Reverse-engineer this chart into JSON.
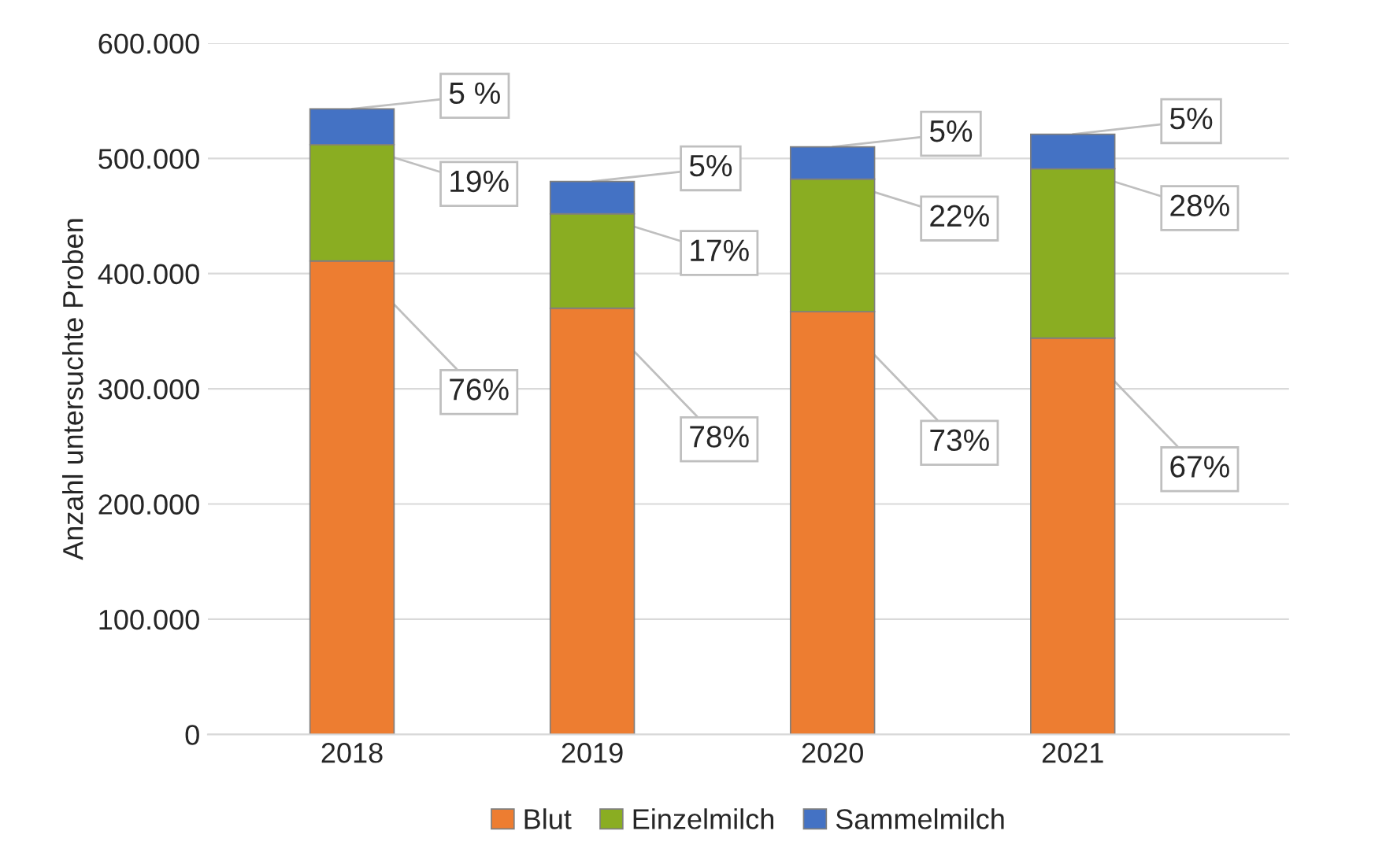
{
  "chart_data": {
    "type": "bar",
    "stacked": true,
    "ylabel": "Anzahl untersuchte Proben",
    "categories": [
      "2018",
      "2019",
      "2020",
      "2021"
    ],
    "series": [
      {
        "name": "Blut",
        "color": "#ed7d31",
        "values": [
          411000,
          370000,
          367000,
          344000
        ]
      },
      {
        "name": "Einzelmilch",
        "color": "#8aad22",
        "values": [
          101000,
          82000,
          115000,
          147000
        ]
      },
      {
        "name": "Sammelmilch",
        "color": "#4472c4",
        "values": [
          31000,
          28000,
          28000,
          30000
        ]
      }
    ],
    "annotations": [
      {
        "text": "76%",
        "x": "2018",
        "y": 411000
      },
      {
        "text": "19%",
        "x": "2018",
        "y": 512000
      },
      {
        "text": "5 %",
        "x": "2018",
        "y": 543000
      },
      {
        "text": "78%",
        "x": "2019",
        "y": 370000
      },
      {
        "text": "17%",
        "x": "2019",
        "y": 452000
      },
      {
        "text": "5%",
        "x": "2019",
        "y": 480000
      },
      {
        "text": "73%",
        "x": "2020",
        "y": 367000
      },
      {
        "text": "22%",
        "x": "2020",
        "y": 482000
      },
      {
        "text": "5%",
        "x": "2020",
        "y": 510000
      },
      {
        "text": "67%",
        "x": "2021",
        "y": 344000
      },
      {
        "text": "28%",
        "x": "2021",
        "y": 491000
      },
      {
        "text": "5%",
        "x": "2021",
        "y": 521000
      }
    ],
    "ylim": [
      0,
      600000
    ],
    "yticks": [
      {
        "value": 0,
        "label": "0"
      },
      {
        "value": 100000,
        "label": "100.000"
      },
      {
        "value": 200000,
        "label": "200.000"
      },
      {
        "value": 300000,
        "label": "300.000"
      },
      {
        "value": 400000,
        "label": "400.000"
      },
      {
        "value": 500000,
        "label": "500.000"
      },
      {
        "value": 600000,
        "label": "600.000"
      }
    ],
    "grid": "y",
    "legend": "bottom"
  }
}
